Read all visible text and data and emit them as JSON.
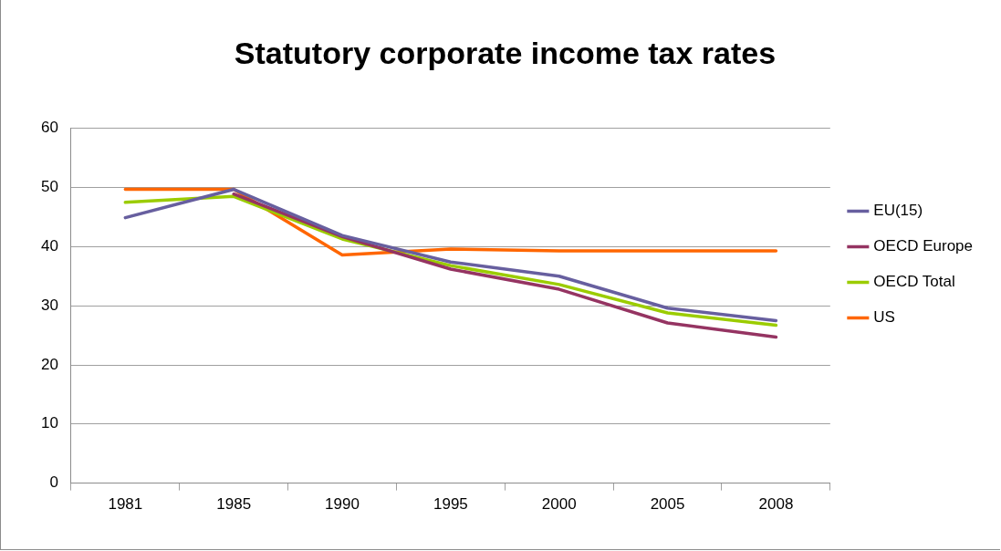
{
  "chart_data": {
    "type": "line",
    "title": "Statutory corporate income tax rates",
    "categories": [
      "1981",
      "1985",
      "1990",
      "1995",
      "2000",
      "2005",
      "2008"
    ],
    "series": [
      {
        "name": "EU(15)",
        "color": "#675f9f",
        "values": [
          44.9,
          49.7,
          41.9,
          37.4,
          35.0,
          29.6,
          27.5
        ]
      },
      {
        "name": "OECD Europe",
        "color": "#953462",
        "values": [
          null,
          48.9,
          41.7,
          36.2,
          32.8,
          27.1,
          24.7
        ]
      },
      {
        "name": "OECD Total",
        "color": "#9bcc00",
        "values": [
          47.5,
          48.5,
          41.3,
          36.8,
          33.6,
          28.8,
          26.7
        ]
      },
      {
        "name": "US",
        "color": "#ff6600",
        "values": [
          49.7,
          49.7,
          38.6,
          39.6,
          39.3,
          39.3,
          39.3
        ]
      }
    ],
    "ylim": [
      0,
      60
    ],
    "yticks": [
      0,
      10,
      20,
      30,
      40,
      50,
      60
    ],
    "grid": "y",
    "legend": "right",
    "marker": "none",
    "line_style": "solid"
  }
}
